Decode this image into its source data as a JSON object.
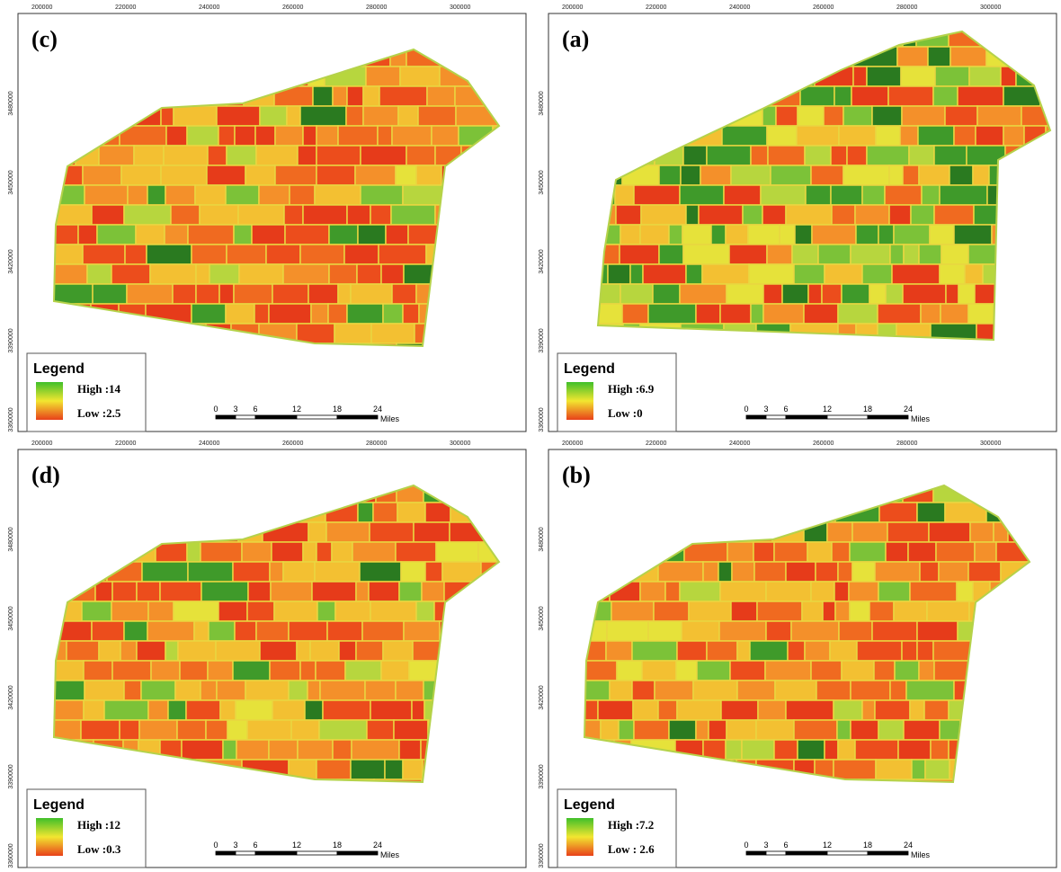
{
  "panels": [
    {
      "label": "(c)",
      "legend": {
        "title": "Legend",
        "high": "High :14",
        "low": "Low :2.5"
      }
    },
    {
      "label": "(a)",
      "legend": {
        "title": "Legend",
        "high": "High :6.9",
        "low": "Low :0"
      }
    },
    {
      "label": "(d)",
      "legend": {
        "title": "Legend",
        "high": "High :12",
        "low": "Low :0.3"
      }
    },
    {
      "label": "(b)",
      "legend": {
        "title": "Legend",
        "high": "High :7.2",
        "low": "Low : 2.6"
      }
    }
  ],
  "x_ticks": [
    "200000",
    "220000",
    "240000",
    "260000",
    "280000",
    "300000"
  ],
  "y_ticks": [
    "3480000",
    "3450000",
    "3420000",
    "3390000",
    "3360000"
  ],
  "scale": {
    "ticks": [
      "0",
      "3",
      "6",
      "12",
      "18",
      "24"
    ],
    "unit": "Miles"
  }
}
